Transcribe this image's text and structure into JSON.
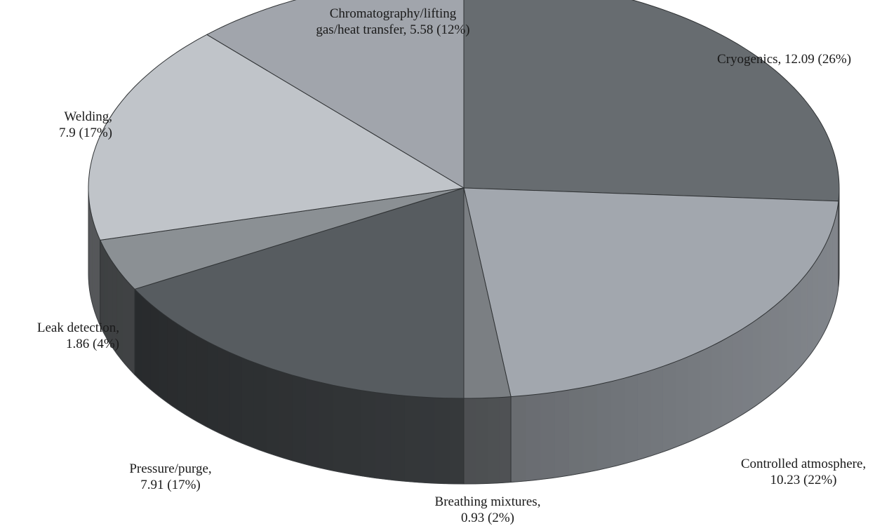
{
  "chart_data": {
    "type": "pie",
    "style": "3d",
    "slices": [
      {
        "label": "Cryogenics",
        "value": 12.09,
        "percent": 26,
        "label_lines": [
          "Cryogenics, 12.09  (26%)"
        ],
        "color": "#676c70"
      },
      {
        "label": "Controlled atmosphere",
        "value": 10.23,
        "percent": 22,
        "label_lines": [
          "Controlled atmosphere,",
          "10.23 (22%)"
        ],
        "color": "#a2a7ae"
      },
      {
        "label": "Breathing mixtures",
        "value": 0.93,
        "percent": 2,
        "label_lines": [
          "Breathing mixtures,",
          "0.93  (2%)"
        ],
        "color": "#7b7f83"
      },
      {
        "label": "Pressure/purge",
        "value": 7.91,
        "percent": 17,
        "label_lines": [
          "Pressure/purge,",
          "7.91 (17%)"
        ],
        "color": "#575c60"
      },
      {
        "label": "Leak detection",
        "value": 1.86,
        "percent": 4,
        "label_lines": [
          "Leak detection,",
          "1.86 (4%)"
        ],
        "color": "#8b9094"
      },
      {
        "label": "Welding",
        "value": 7.9,
        "percent": 17,
        "label_lines": [
          "Welding,",
          "7.9  (17%)"
        ],
        "color": "#c0c4c9"
      },
      {
        "label": "Chromatography/lifting gas/heat transfer",
        "value": 5.58,
        "percent": 12,
        "label_lines": [
          "Chromatography/lifting",
          "gas/heat transfer, 5.58 (12%)"
        ],
        "color": "#a1a5ac"
      }
    ]
  }
}
